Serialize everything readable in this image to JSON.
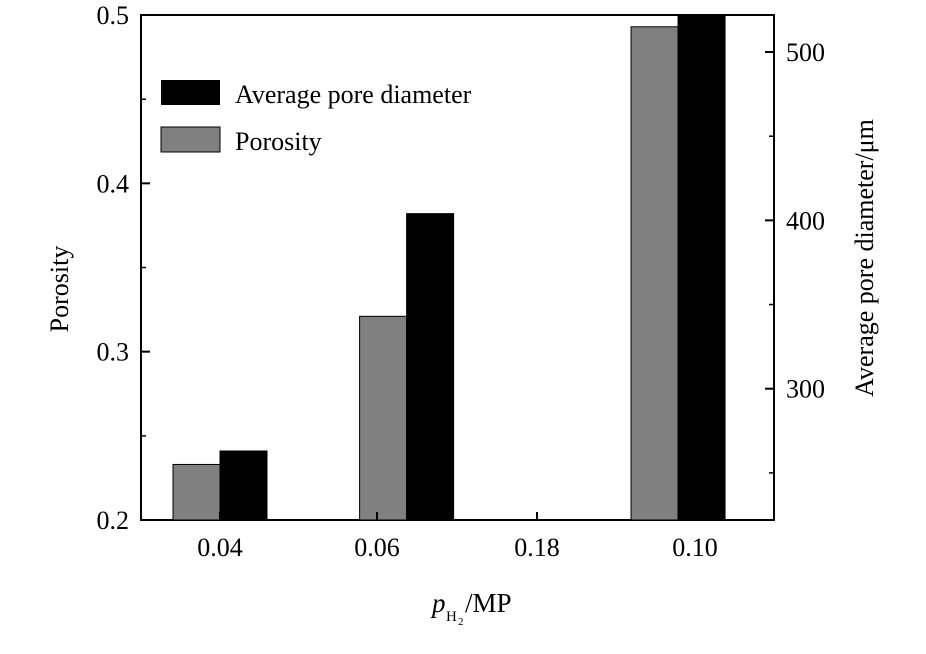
{
  "chart_data": {
    "type": "bar",
    "title": "",
    "categories": [
      "0.04",
      "0.06",
      "0.18",
      "0.10"
    ],
    "xlabel": {
      "main": "p",
      "subscript": "H",
      "sub_subscript": "2",
      "suffix": "/MP"
    },
    "ylabel_left": "Porosity",
    "ylabel_right": "Average pore diameter/μm",
    "ylim_left": [
      0.2,
      0.5
    ],
    "ylim_right": [
      222,
      522
    ],
    "yticks_left": [
      "0.2",
      "0.3",
      "0.4",
      "0.5"
    ],
    "yticks_right": [
      "300",
      "400",
      "500"
    ],
    "legend_position": "top-left",
    "series": [
      {
        "name": "Porosity",
        "axis": "left",
        "color": "#808080",
        "values": [
          0.233,
          null,
          0.321,
          0.493
        ],
        "x_positions": [
          0.04,
          null,
          0.062,
          0.094
        ]
      },
      {
        "name": "Average pore diameter",
        "axis": "right",
        "color": "#000000",
        "values": [
          263,
          null,
          404,
          524
        ],
        "x_positions": [
          0.04,
          null,
          0.062,
          0.094
        ]
      }
    ],
    "legend": [
      {
        "name": "Average pore diameter",
        "color": "#000000"
      },
      {
        "name": "Porosity",
        "color": "#808080"
      }
    ]
  }
}
